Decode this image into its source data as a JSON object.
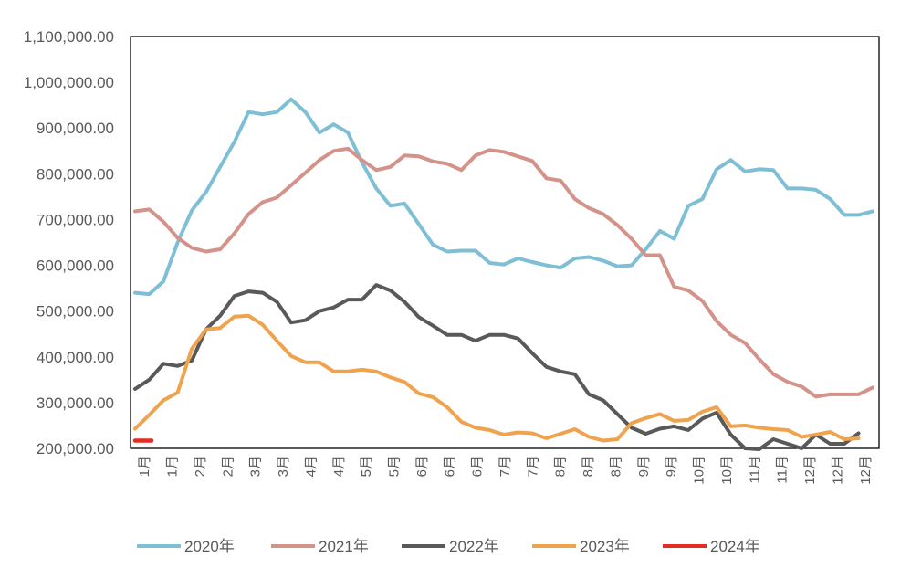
{
  "chart_data": {
    "type": "line",
    "ylim": [
      200000,
      1100000
    ],
    "y_ticks": [
      "1,100,000.00",
      "1,000,000.00",
      "900,000.00",
      "800,000.00",
      "700,000.00",
      "600,000.00",
      "500,000.00",
      "400,000.00",
      "300,000.00",
      "200,000.00"
    ],
    "y_tick_values": [
      1100000,
      1000000,
      900000,
      800000,
      700000,
      600000,
      500000,
      400000,
      300000,
      200000
    ],
    "x_tick_labels": [
      "1月",
      "1月",
      "2月",
      "2月",
      "3月",
      "3月",
      "4月",
      "4月",
      "5月",
      "5月",
      "6月",
      "6月",
      "6月",
      "7月",
      "7月",
      "8月",
      "8月",
      "8月",
      "9月",
      "9月",
      "10月",
      "10月",
      "11月",
      "11月",
      "12月",
      "12月",
      "12月"
    ],
    "grid": false,
    "legend_position": "bottom",
    "colors": {
      "2020年": "#7fbfd6",
      "2021年": "#d4938a",
      "2022年": "#595959",
      "2023年": "#f0a34e",
      "2024年": "#e52c23"
    },
    "series": [
      {
        "name": "2020年",
        "values": [
          540000,
          537000,
          565000,
          650000,
          720000,
          760000,
          815000,
          870000,
          935000,
          930000,
          935000,
          963000,
          935000,
          890000,
          908000,
          890000,
          825000,
          768000,
          730000,
          735000,
          690000,
          645000,
          630000,
          632000,
          632000,
          605000,
          602000,
          615000,
          607000,
          600000,
          595000,
          615000,
          618000,
          610000,
          598000,
          600000,
          635000,
          675000,
          658000,
          730000,
          745000,
          810000,
          830000,
          805000,
          810000,
          808000,
          768000,
          768000,
          765000,
          745000,
          710000,
          710000,
          718000
        ]
      },
      {
        "name": "2021年",
        "values": [
          718000,
          722000,
          695000,
          660000,
          638000,
          630000,
          635000,
          670000,
          712000,
          738000,
          748000,
          775000,
          802000,
          830000,
          850000,
          855000,
          830000,
          808000,
          815000,
          840000,
          838000,
          827000,
          822000,
          808000,
          840000,
          852000,
          848000,
          838000,
          828000,
          790000,
          785000,
          745000,
          725000,
          712000,
          688000,
          658000,
          622000,
          622000,
          553000,
          545000,
          522000,
          478000,
          448000,
          430000,
          395000,
          362000,
          345000,
          335000,
          313000,
          318000,
          318000,
          318000,
          333000
        ]
      },
      {
        "name": "2022年",
        "values": [
          330000,
          350000,
          385000,
          380000,
          392000,
          460000,
          490000,
          533000,
          543000,
          540000,
          520000,
          475000,
          480000,
          500000,
          508000,
          525000,
          525000,
          557000,
          545000,
          520000,
          487000,
          468000,
          448000,
          448000,
          435000,
          448000,
          448000,
          440000,
          408000,
          378000,
          368000,
          362000,
          318000,
          305000,
          275000,
          245000,
          232000,
          243000,
          248000,
          240000,
          265000,
          278000,
          230000,
          200000,
          198000,
          220000,
          210000,
          200000,
          230000,
          210000,
          210000,
          233000
        ]
      },
      {
        "name": "2023年",
        "values": [
          243000,
          273000,
          305000,
          322000,
          418000,
          460000,
          463000,
          488000,
          490000,
          470000,
          435000,
          402000,
          388000,
          388000,
          368000,
          368000,
          372000,
          368000,
          355000,
          345000,
          320000,
          312000,
          290000,
          258000,
          245000,
          240000,
          230000,
          235000,
          233000,
          222000,
          232000,
          242000,
          225000,
          217000,
          220000,
          255000,
          266000,
          275000,
          260000,
          262000,
          280000,
          290000,
          248000,
          250000,
          245000,
          242000,
          240000,
          225000,
          230000,
          236000,
          220000,
          222000
        ]
      },
      {
        "name": "2024年",
        "values": [
          217000,
          217000
        ]
      }
    ]
  }
}
